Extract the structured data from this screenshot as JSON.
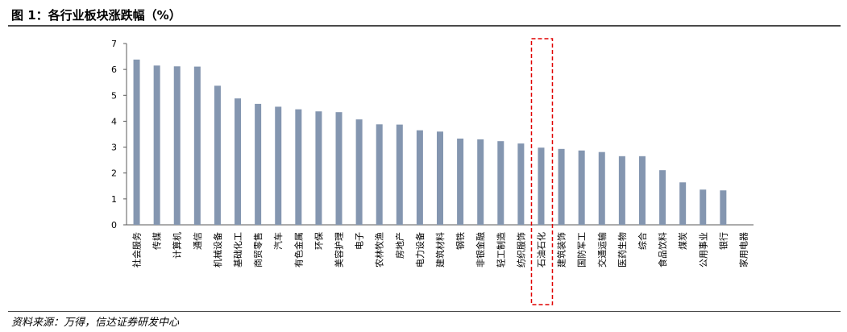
{
  "figure": {
    "title": "图 1：各行业板块涨跌幅（%）",
    "source": "资料来源：万得，信达证券研发中心"
  },
  "chart_data": {
    "type": "bar",
    "title": "",
    "xlabel": "",
    "ylabel": "",
    "ylim": [
      0,
      7
    ],
    "yticks": [
      0,
      1,
      2,
      3,
      4,
      5,
      6,
      7
    ],
    "grid": false,
    "legend": "none",
    "bar_color": "#8496b0",
    "highlight_color": "#e00000",
    "highlight_category": "石油石化",
    "categories": [
      "社会服务",
      "传媒",
      "计算机",
      "通信",
      "机械设备",
      "基础化工",
      "商贸零售",
      "汽车",
      "有色金属",
      "环保",
      "美容护理",
      "电子",
      "农林牧渔",
      "房地产",
      "电力设备",
      "建筑材料",
      "钢铁",
      "非银金融",
      "轻工制造",
      "纺织服饰",
      "石油石化",
      "建筑装饰",
      "国防军工",
      "交通运输",
      "医药生物",
      "综合",
      "食品饮料",
      "煤炭",
      "公用事业",
      "银行",
      "家用电器"
    ],
    "values": [
      6.38,
      6.15,
      6.12,
      6.11,
      5.37,
      4.88,
      4.67,
      4.56,
      4.46,
      4.38,
      4.35,
      4.07,
      3.88,
      3.87,
      3.65,
      3.6,
      3.33,
      3.3,
      3.23,
      3.14,
      2.98,
      2.93,
      2.87,
      2.81,
      2.65,
      2.65,
      2.11,
      1.64,
      1.36,
      1.33,
      0
    ]
  }
}
